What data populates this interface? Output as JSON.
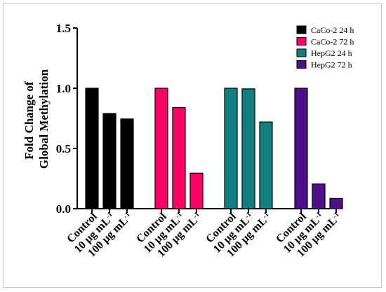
{
  "chart_data": {
    "type": "bar",
    "ylabel_lines": [
      "Fold Change of",
      "Global Methylation"
    ],
    "ylim": [
      0,
      1.5
    ],
    "yticks": [
      "0.0",
      "0.5",
      "1.0",
      "1.5"
    ],
    "grid": false,
    "legend_position": "top-right",
    "category_labels": [
      "Control",
      "10 μg mL",
      "100 μg mL",
      "Control",
      "10 μg mL",
      "100 μg mL",
      "Control",
      "10 μg mL",
      "100 μg mL",
      "Control",
      "10 μg mL",
      "100 μg mL"
    ],
    "unit_superscript": "-1",
    "series": [
      {
        "name": "CaCo-2 24 h",
        "color": "#000000",
        "categories": [
          "Control",
          "10 μg mL-1",
          "100 μg mL-1"
        ],
        "values": [
          1.0,
          0.79,
          0.745
        ]
      },
      {
        "name": "CaCo-2 72 h",
        "color": "#ff0066",
        "categories": [
          "Control",
          "10 μg mL-1",
          "100 μg mL-1"
        ],
        "values": [
          1.0,
          0.84,
          0.295
        ]
      },
      {
        "name": "HepG2 24 h",
        "color": "#0f8080",
        "categories": [
          "Control",
          "10 μg mL-1",
          "100 μg mL-1"
        ],
        "values": [
          1.0,
          0.995,
          0.72
        ]
      },
      {
        "name": "HepG2 72 h",
        "color": "#4d0f8c",
        "categories": [
          "Control",
          "10 μg mL-1",
          "100 μg mL-1"
        ],
        "values": [
          1.0,
          0.205,
          0.085
        ]
      }
    ]
  }
}
